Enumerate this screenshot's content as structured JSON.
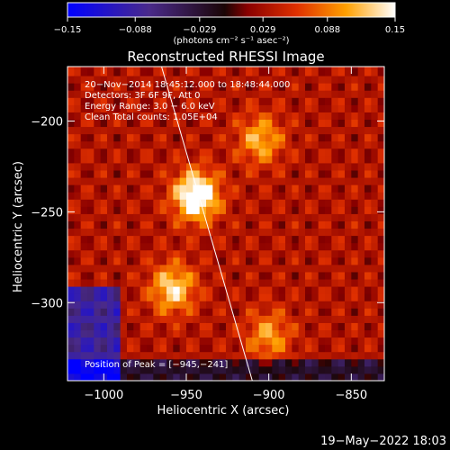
{
  "chart_data": {
    "type": "heatmap",
    "title": "Reconstructed RHESSI Image",
    "xlabel": "Heliocentric X (arcsec)",
    "ylabel": "Heliocentric Y (arcsec)",
    "xlim": [
      -1022,
      -830
    ],
    "ylim": [
      -343,
      -170
    ],
    "x_ticks": [
      -1000,
      -950,
      -900,
      -850
    ],
    "x_tick_labels": [
      "−1000",
      "−950",
      "−900",
      "−850"
    ],
    "y_ticks": [
      -200,
      -250,
      -300
    ],
    "y_tick_labels": [
      "−200",
      "−250",
      "−300"
    ],
    "colorbar": {
      "ticks": [
        -0.15,
        -0.088,
        -0.029,
        0.029,
        0.088,
        0.15
      ],
      "tick_labels": [
        "−0.15",
        "−0.088",
        "−0.029",
        "0.029",
        "0.088",
        "0.15"
      ],
      "range": [
        -0.15,
        0.15
      ],
      "unit_label": "(photons cm⁻² s⁻¹ asec⁻²)"
    },
    "annotations": [
      "20−Nov−2014 18:45:12.000 to 18:48:44.000",
      "Detectors: 3F 6F 9F, Att 0",
      "Energy Range: 3.0 − 6.0 keV",
      "Clean    Total counts: 1.05E+04"
    ],
    "peak_label": "Position of Peak = [−945,−241]",
    "peak": [
      -945,
      -241
    ],
    "sources": [
      {
        "x": -944,
        "y": -241,
        "peak": 0.15
      },
      {
        "x": -958,
        "y": -292,
        "peak": 0.1
      },
      {
        "x": -905,
        "y": -210,
        "peak": 0.08
      },
      {
        "x": -900,
        "y": -318,
        "peak": 0.07
      }
    ],
    "limb_line": [
      [
        -965,
        -170
      ],
      [
        -910,
        -343
      ]
    ]
  },
  "timestamp": "19−May−2022 18:03"
}
